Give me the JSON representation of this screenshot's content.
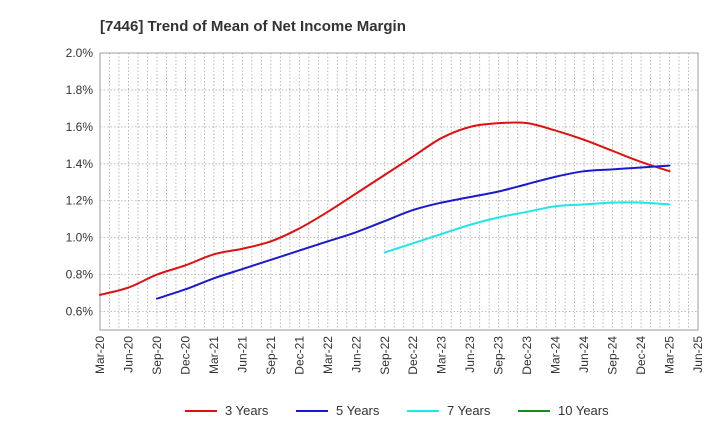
{
  "chart_data": {
    "type": "line",
    "title": "[7446]  Trend of Mean of Net Income Margin",
    "xlabel": "",
    "ylabel": "",
    "ylim": [
      0.5,
      2.0
    ],
    "y_ticks": [
      0.6,
      0.8,
      1.0,
      1.2,
      1.4,
      1.6,
      1.8,
      2.0
    ],
    "y_tick_labels": [
      "0.6%",
      "0.8%",
      "1.0%",
      "1.2%",
      "1.4%",
      "1.6%",
      "1.8%",
      "2.0%"
    ],
    "x_tick_labels": [
      "Mar-20",
      "Jun-20",
      "Sep-20",
      "Dec-20",
      "Mar-21",
      "Jun-21",
      "Sep-21",
      "Dec-21",
      "Mar-22",
      "Jun-22",
      "Sep-22",
      "Dec-22",
      "Mar-23",
      "Jun-23",
      "Sep-23",
      "Dec-23",
      "Mar-24",
      "Jun-24",
      "Sep-24",
      "Dec-24",
      "Mar-25",
      "Jun-25"
    ],
    "grid": true,
    "legend_position": "bottom",
    "series": [
      {
        "name": "3 Years",
        "color": "#dd1111",
        "x": [
          "Mar-20",
          "Jun-20",
          "Sep-20",
          "Dec-20",
          "Mar-21",
          "Jun-21",
          "Sep-21",
          "Dec-21",
          "Mar-22",
          "Jun-22",
          "Sep-22",
          "Dec-22",
          "Mar-23",
          "Jun-23",
          "Sep-23",
          "Dec-23",
          "Mar-24",
          "Jun-24",
          "Sep-24",
          "Dec-24",
          "Mar-25"
        ],
        "values": [
          0.69,
          0.73,
          0.8,
          0.85,
          0.91,
          0.94,
          0.98,
          1.05,
          1.14,
          1.24,
          1.34,
          1.44,
          1.54,
          1.6,
          1.62,
          1.62,
          1.58,
          1.53,
          1.47,
          1.41,
          1.36
        ]
      },
      {
        "name": "5 Years",
        "color": "#1a1acc",
        "x": [
          "Sep-20",
          "Dec-20",
          "Mar-21",
          "Jun-21",
          "Sep-21",
          "Dec-21",
          "Mar-22",
          "Jun-22",
          "Sep-22",
          "Dec-22",
          "Mar-23",
          "Jun-23",
          "Sep-23",
          "Dec-23",
          "Mar-24",
          "Jun-24",
          "Sep-24",
          "Dec-24",
          "Mar-25"
        ],
        "values": [
          0.67,
          0.72,
          0.78,
          0.83,
          0.88,
          0.93,
          0.98,
          1.03,
          1.09,
          1.15,
          1.19,
          1.22,
          1.25,
          1.29,
          1.33,
          1.36,
          1.37,
          1.38,
          1.39
        ]
      },
      {
        "name": "7 Years",
        "color": "#22e5e5",
        "x": [
          "Sep-22",
          "Dec-22",
          "Mar-23",
          "Jun-23",
          "Sep-23",
          "Dec-23",
          "Mar-24",
          "Jun-24",
          "Sep-24",
          "Dec-24",
          "Mar-25"
        ],
        "values": [
          0.92,
          0.97,
          1.02,
          1.07,
          1.11,
          1.14,
          1.17,
          1.18,
          1.19,
          1.19,
          1.18
        ]
      },
      {
        "name": "10 Years",
        "color": "#1a8a1a",
        "x": [],
        "values": []
      }
    ]
  }
}
